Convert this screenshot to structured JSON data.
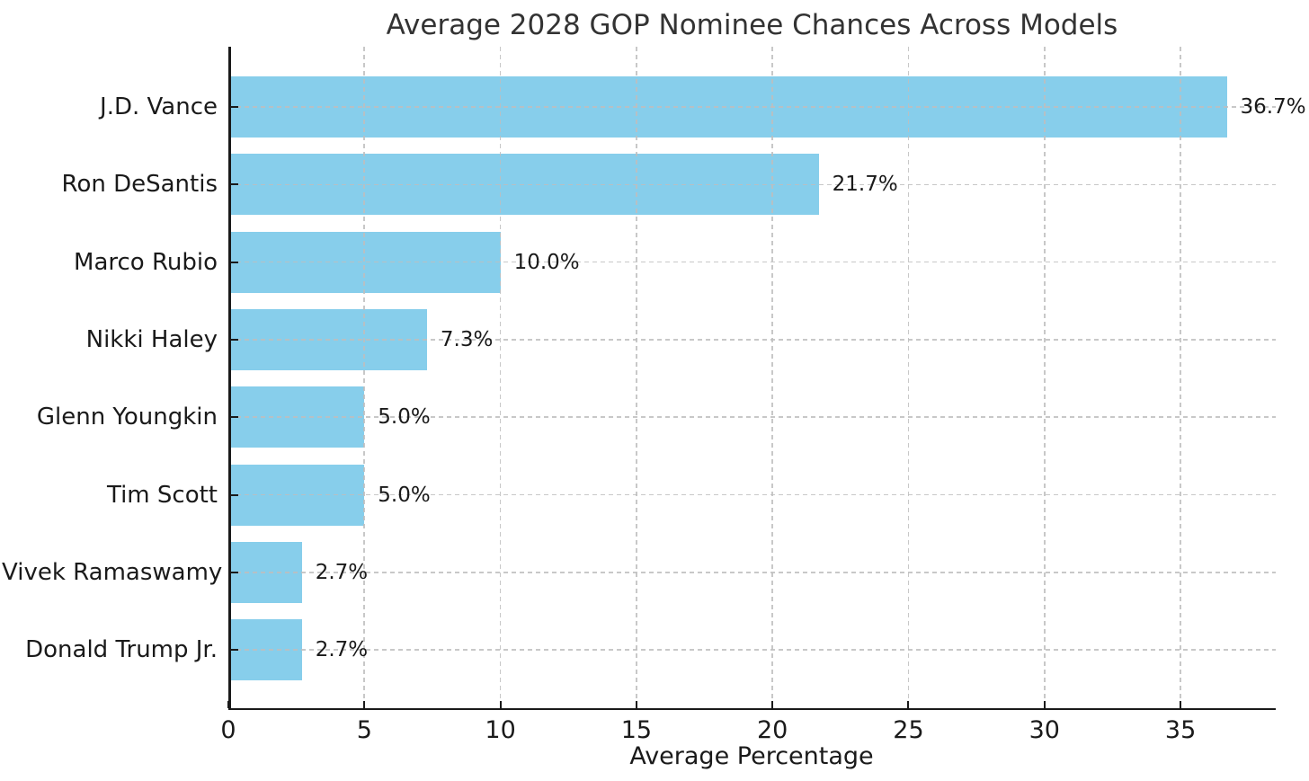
{
  "chart_data": {
    "type": "bar",
    "orientation": "horizontal",
    "title": "Average 2028 GOP Nominee Chances Across Models",
    "xlabel": "Average Percentage",
    "ylabel": "",
    "categories": [
      "J.D. Vance",
      "Ron DeSantis",
      "Marco Rubio",
      "Nikki Haley",
      "Glenn Youngkin",
      "Tim Scott",
      "Vivek Ramaswamy",
      "Donald Trump Jr."
    ],
    "values": [
      36.7,
      21.7,
      10.0,
      7.3,
      5.0,
      5.0,
      2.7,
      2.7
    ],
    "value_labels": [
      "36.7%",
      "21.7%",
      "10.0%",
      "7.3%",
      "5.0%",
      "5.0%",
      "2.7%",
      "2.7%"
    ],
    "xticks": [
      0,
      5,
      10,
      15,
      20,
      25,
      30,
      35
    ],
    "xtick_labels": [
      "0",
      "5",
      "10",
      "15",
      "20",
      "25",
      "30",
      "35"
    ],
    "xlim": [
      0,
      38.5
    ],
    "grid": true,
    "grid_style": "dashed",
    "legend": false,
    "bar_color": "#87CEEB",
    "grid_color": "#bebebe",
    "axis_color": "#1a1a1a",
    "text_color": "#1a1a1a",
    "background_color": "#ffffff"
  }
}
